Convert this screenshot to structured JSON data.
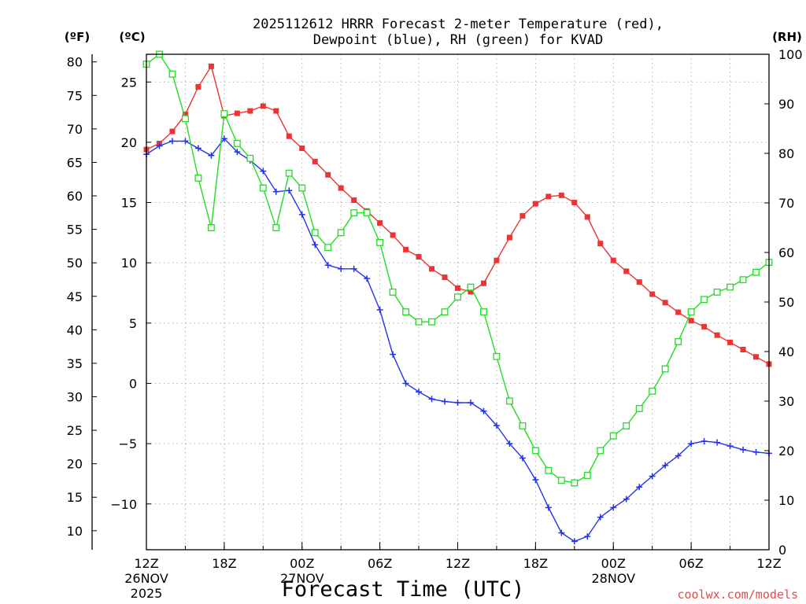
{
  "chart_data": {
    "type": "line",
    "title_lines": [
      "2025112612 HRRR Forecast 2-meter Temperature (red),",
      "Dewpoint (blue), RH (green) for KVAD"
    ],
    "xlabel": "Forecast Time (UTC)",
    "credit": "coolwx.com/models",
    "units": {
      "fahrenheit": "(ºF)",
      "celsius": "(ºC)",
      "rh": "(RH)"
    },
    "x_range": [
      0,
      48
    ],
    "y_celsius_range": [
      -13.8,
      27.3
    ],
    "y_rh_range": [
      0,
      100
    ],
    "celsius_ticks": [
      "25",
      "20",
      "15",
      "10",
      "5",
      "0",
      "−5",
      "−10"
    ],
    "fahrenheit_ticks": [
      "80",
      "75",
      "70",
      "65",
      "60",
      "55",
      "50",
      "45",
      "40",
      "35",
      "30",
      "25",
      "20",
      "15",
      "10"
    ],
    "rh_ticks": [
      "100",
      "90",
      "80",
      "70",
      "60",
      "50",
      "40",
      "30",
      "20",
      "10",
      "0"
    ],
    "x_ticks": [
      {
        "hour": 0,
        "label": "12Z",
        "date": "26NOV",
        "year": "2025"
      },
      {
        "hour": 6,
        "label": "18Z"
      },
      {
        "hour": 12,
        "label": "00Z",
        "date": "27NOV"
      },
      {
        "hour": 18,
        "label": "06Z"
      },
      {
        "hour": 24,
        "label": "12Z"
      },
      {
        "hour": 30,
        "label": "18Z"
      },
      {
        "hour": 36,
        "label": "00Z",
        "date": "28NOV"
      },
      {
        "hour": 42,
        "label": "06Z"
      },
      {
        "hour": 48,
        "label": "12Z"
      }
    ],
    "series": [
      {
        "name": "2-meter Temperature",
        "unit": "C",
        "color": "#ee3333",
        "values": [
          19.4,
          19.9,
          20.9,
          22.3,
          24.6,
          26.3,
          22.2,
          22.4,
          22.6,
          23.0,
          22.6,
          20.5,
          19.5,
          18.4,
          17.3,
          16.2,
          15.2,
          14.3,
          13.3,
          12.3,
          11.1,
          10.5,
          9.5,
          8.8,
          7.9,
          7.6,
          8.3,
          10.2,
          12.1,
          13.9,
          14.9,
          15.5,
          15.6,
          15.0,
          13.8,
          11.6,
          10.2,
          9.3,
          8.4,
          7.4,
          6.7,
          5.9,
          5.2,
          4.7,
          4.0,
          3.4,
          2.8,
          2.2,
          1.6
        ]
      },
      {
        "name": "Dewpoint",
        "unit": "C",
        "color": "#2233ee",
        "values": [
          19.0,
          19.7,
          20.1,
          20.1,
          19.5,
          18.9,
          20.3,
          19.2,
          18.5,
          17.6,
          15.9,
          16.0,
          14.0,
          11.5,
          9.8,
          9.5,
          9.5,
          8.7,
          6.1,
          2.4,
          0.0,
          -0.7,
          -1.3,
          -1.5,
          -1.6,
          -1.6,
          -2.3,
          -3.5,
          -5.0,
          -6.2,
          -8.0,
          -10.3,
          -12.4,
          -13.1,
          -12.7,
          -11.1,
          -10.3,
          -9.6,
          -8.6,
          -7.7,
          -6.8,
          -6.0,
          -5.0,
          -4.8,
          -4.9,
          -5.2,
          -5.5,
          -5.7,
          -5.8
        ]
      },
      {
        "name": "RH",
        "unit": "%",
        "color": "#22dd22",
        "values": [
          98,
          100,
          96,
          87,
          75,
          65,
          88,
          82,
          79,
          73,
          65,
          76,
          73,
          64,
          61,
          64,
          68,
          68,
          62,
          52,
          48,
          46,
          46,
          48,
          51,
          53,
          48,
          39,
          30,
          25,
          20,
          16,
          14,
          13.5,
          15,
          20,
          23,
          25,
          28.5,
          32,
          36.5,
          42,
          48,
          50.5,
          52,
          53,
          54.5,
          56,
          58
        ]
      }
    ]
  }
}
